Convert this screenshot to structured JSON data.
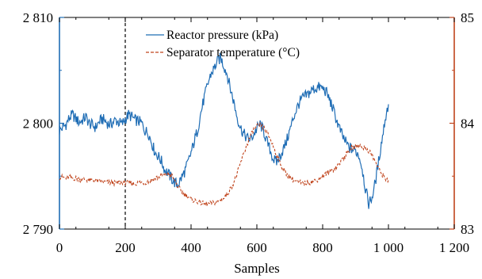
{
  "chart_data": {
    "type": "line",
    "xlabel": "Samples",
    "xlim": [
      0,
      1200
    ],
    "x_ticks": [
      0,
      200,
      400,
      600,
      800,
      1000,
      1200
    ],
    "x_tick_labels": [
      "0",
      "200",
      "400",
      "600",
      "800",
      "1 000",
      "1 200"
    ],
    "y_left": {
      "lim": [
        2790,
        2810
      ],
      "ticks": [
        2790,
        2800,
        2810
      ],
      "tick_labels": [
        "2 790",
        "2 800",
        "2 810"
      ],
      "color": "#1f6db5"
    },
    "y_right": {
      "lim": [
        83,
        85
      ],
      "ticks": [
        83,
        84,
        85
      ],
      "tick_labels": [
        "83",
        "84",
        "85"
      ],
      "color": "#c0441c"
    },
    "vertical_marker": {
      "x": 200,
      "style": "dashed",
      "color": "#000000"
    },
    "legend_position": "top-center",
    "series": [
      {
        "name": "Reactor pressure (kPa)",
        "axis": "left",
        "color": "#1f6db5",
        "style": "solid",
        "x": [
          0,
          10,
          20,
          30,
          40,
          50,
          60,
          70,
          80,
          90,
          100,
          110,
          120,
          130,
          140,
          150,
          160,
          170,
          180,
          190,
          200,
          210,
          220,
          230,
          240,
          250,
          260,
          270,
          280,
          290,
          300,
          310,
          320,
          330,
          340,
          350,
          360,
          370,
          380,
          390,
          400,
          410,
          420,
          430,
          440,
          450,
          460,
          470,
          480,
          490,
          500,
          510,
          520,
          530,
          540,
          550,
          560,
          570,
          580,
          590,
          600,
          610,
          620,
          630,
          640,
          650,
          660,
          670,
          680,
          690,
          700,
          710,
          720,
          730,
          740,
          750,
          760,
          770,
          780,
          790,
          800,
          810,
          820,
          830,
          840,
          850,
          860,
          870,
          880,
          890,
          900,
          910,
          920,
          930,
          940,
          950,
          960,
          970,
          980,
          990,
          1000
        ],
        "values": [
          2799.3,
          2799.6,
          2799.9,
          2800.5,
          2800.8,
          2800.4,
          2800.1,
          2800.3,
          2800.6,
          2800.0,
          2799.8,
          2799.6,
          2800.1,
          2800.4,
          2800.2,
          2799.9,
          2800.0,
          2800.3,
          2800.1,
          2799.9,
          2800.4,
          2800.8,
          2800.6,
          2800.3,
          2800.2,
          2800.0,
          2799.3,
          2799.1,
          2798.2,
          2797.3,
          2796.9,
          2796.4,
          2795.6,
          2795.3,
          2794.8,
          2794.4,
          2794.2,
          2794.8,
          2795.4,
          2796.2,
          2797.2,
          2798.3,
          2799.4,
          2801.0,
          2802.4,
          2803.6,
          2804.6,
          2805.2,
          2805.8,
          2806.2,
          2805.4,
          2804.6,
          2803.2,
          2802.0,
          2800.6,
          2799.6,
          2799.0,
          2798.6,
          2798.5,
          2798.9,
          2799.5,
          2799.9,
          2799.3,
          2798.3,
          2797.5,
          2796.6,
          2796.3,
          2796.9,
          2797.5,
          2798.3,
          2799.3,
          2800.4,
          2801.3,
          2802.0,
          2802.4,
          2802.6,
          2802.9,
          2803.2,
          2803.3,
          2803.4,
          2803.3,
          2803.0,
          2802.3,
          2801.5,
          2800.5,
          2799.6,
          2798.8,
          2798.2,
          2797.7,
          2797.5,
          2797.4,
          2797.0,
          2795.8,
          2793.8,
          2792.4,
          2793.0,
          2794.4,
          2796.4,
          2798.4,
          2800.4,
          2801.8
        ]
      },
      {
        "name": "Separator temperature (°C)",
        "axis": "right",
        "color": "#c0441c",
        "style": "dashed",
        "x": [
          0,
          10,
          20,
          30,
          40,
          50,
          60,
          70,
          80,
          90,
          100,
          110,
          120,
          130,
          140,
          150,
          160,
          170,
          180,
          190,
          200,
          210,
          220,
          230,
          240,
          250,
          260,
          270,
          280,
          290,
          300,
          310,
          320,
          330,
          340,
          350,
          360,
          370,
          380,
          390,
          400,
          410,
          420,
          430,
          440,
          450,
          460,
          470,
          480,
          490,
          500,
          510,
          520,
          530,
          540,
          550,
          560,
          570,
          580,
          590,
          600,
          610,
          620,
          630,
          640,
          650,
          660,
          670,
          680,
          690,
          700,
          710,
          720,
          730,
          740,
          750,
          760,
          770,
          780,
          790,
          800,
          810,
          820,
          830,
          840,
          850,
          860,
          870,
          880,
          890,
          900,
          910,
          920,
          930,
          940,
          950,
          960,
          970,
          980,
          990,
          1000
        ],
        "values": [
          83.49,
          83.49,
          83.48,
          83.49,
          83.48,
          83.48,
          83.47,
          83.47,
          83.47,
          83.46,
          83.46,
          83.46,
          83.45,
          83.45,
          83.44,
          83.44,
          83.44,
          83.43,
          83.44,
          83.44,
          83.44,
          83.44,
          83.43,
          83.43,
          83.44,
          83.44,
          83.44,
          83.45,
          83.46,
          83.48,
          83.49,
          83.51,
          83.51,
          83.52,
          83.51,
          83.46,
          83.4,
          83.36,
          83.33,
          83.31,
          83.28,
          83.27,
          83.26,
          83.25,
          83.24,
          83.24,
          83.24,
          83.25,
          83.26,
          83.28,
          83.29,
          83.33,
          83.38,
          83.44,
          83.52,
          83.62,
          83.71,
          83.8,
          83.87,
          83.94,
          83.97,
          83.98,
          83.96,
          83.91,
          83.86,
          83.78,
          83.7,
          83.63,
          83.57,
          83.52,
          83.49,
          83.47,
          83.45,
          83.44,
          83.43,
          83.44,
          83.44,
          83.45,
          83.46,
          83.48,
          83.5,
          83.52,
          83.54,
          83.56,
          83.58,
          83.62,
          83.66,
          83.7,
          83.74,
          83.77,
          83.78,
          83.79,
          83.78,
          83.76,
          83.74,
          83.7,
          83.64,
          83.57,
          83.52,
          83.48,
          83.46
        ]
      }
    ]
  }
}
